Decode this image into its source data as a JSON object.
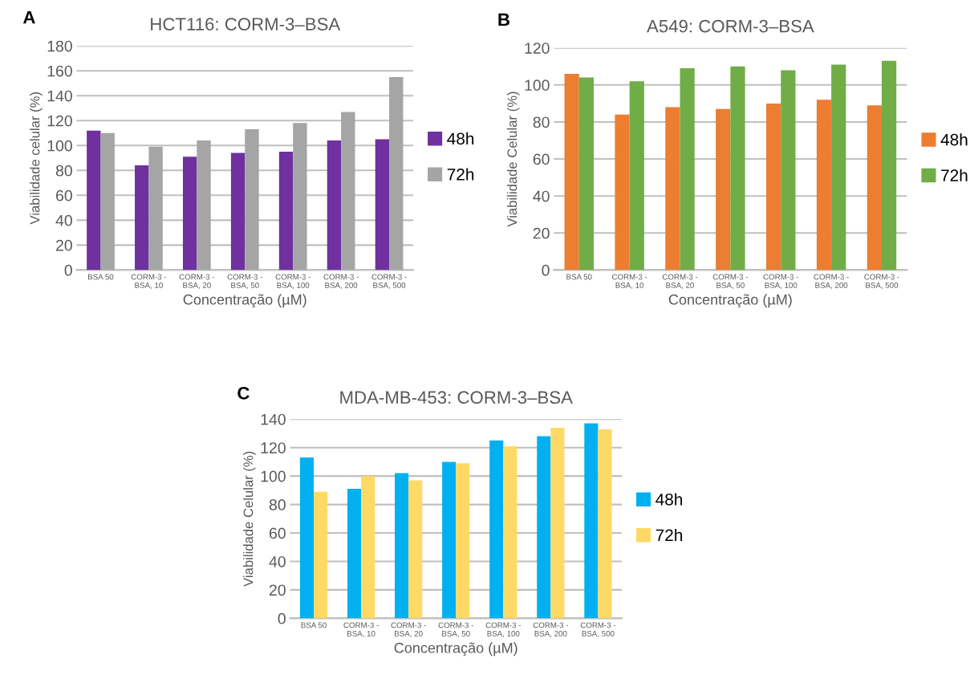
{
  "chart_data": [
    {
      "type": "bar",
      "title": "HCT116: CORM-3–BSA",
      "xlabel": "Concentração (µM)",
      "ylabel": "Viabilidade celular (%)",
      "annotations": [
        "A"
      ],
      "categories": [
        "BSA 50",
        "CORM-3 -\nBSA, 10",
        "CORM-3 -\nBSA, 20",
        "CORM-3 -\nBSA, 50",
        "CORM-3 -\nBSA, 100",
        "CORM-3 -\nBSA, 200",
        "CORM-3 -\nBSA, 500"
      ],
      "series": [
        {
          "name": "48h",
          "color": "#7030a0",
          "values": [
            112,
            84,
            91,
            94,
            95,
            104,
            105
          ]
        },
        {
          "name": "72h",
          "color": "#a5a5a5",
          "values": [
            110,
            99,
            104,
            113,
            118,
            127,
            155
          ]
        }
      ],
      "ylim": [
        0,
        180
      ],
      "yticks": [
        0,
        20,
        40,
        60,
        80,
        100,
        120,
        140,
        160,
        180
      ],
      "grid": "y",
      "legend": "right"
    },
    {
      "type": "bar",
      "title": "A549: CORM-3–BSA",
      "xlabel": "Concentração (µM)",
      "ylabel": "Viabilidade Celular (%)",
      "annotations": [
        "B"
      ],
      "categories": [
        "BSA 50",
        "CORM-3 -\nBSA, 10",
        "CORM-3 -\nBSA, 20",
        "CORM-3 -\nBSA, 50",
        "CORM-3 -\nBSA, 100",
        "CORM-3 -\nBSA, 200",
        "CORM-3 -\nBSA, 500"
      ],
      "series": [
        {
          "name": "48h",
          "color": "#ed7d31",
          "values": [
            106,
            84,
            88,
            87,
            90,
            92,
            89
          ]
        },
        {
          "name": "72h",
          "color": "#70ad47",
          "values": [
            104,
            102,
            109,
            110,
            108,
            111,
            113
          ]
        }
      ],
      "ylim": [
        0,
        120
      ],
      "yticks": [
        0,
        20,
        40,
        60,
        80,
        100,
        120
      ],
      "grid": "y",
      "legend": "right"
    },
    {
      "type": "bar",
      "title": "MDA-MB-453: CORM-3–BSA",
      "xlabel": "Concentração (µM)",
      "ylabel": "Viabilidade Celular (%)",
      "annotations": [
        "C"
      ],
      "categories": [
        "BSA 50",
        "CORM-3 -\nBSA, 10",
        "CORM-3 -\nBSA, 20",
        "CORM-3 -\nBSA, 50",
        "CORM-3 -\nBSA, 100",
        "CORM-3 -\nBSA, 200",
        "CORM-3 -\nBSA, 500"
      ],
      "series": [
        {
          "name": "48h",
          "color": "#00b0f0",
          "values": [
            113,
            91,
            102,
            110,
            125,
            128,
            137
          ]
        },
        {
          "name": "72h",
          "color": "#ffd966",
          "values": [
            89,
            100,
            97,
            109,
            121,
            134,
            133
          ]
        }
      ],
      "ylim": [
        0,
        140
      ],
      "yticks": [
        0,
        20,
        40,
        60,
        80,
        100,
        120,
        140
      ],
      "grid": "y",
      "legend": "right"
    }
  ]
}
